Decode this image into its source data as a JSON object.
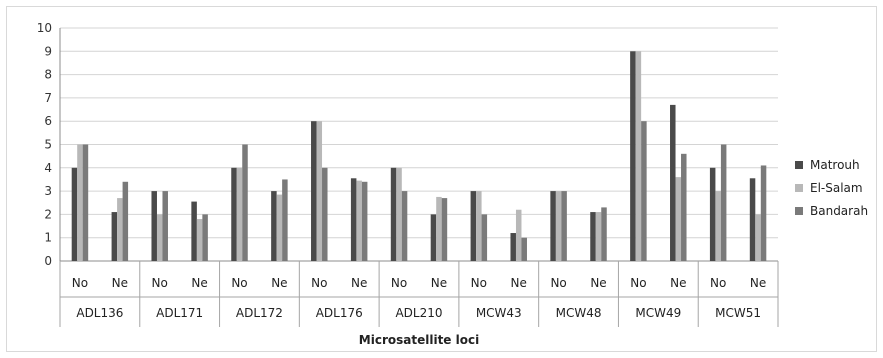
{
  "chart_data": {
    "type": "bar",
    "title": "",
    "xlabel": "Microsatellite loci",
    "ylabel": "",
    "ylim": [
      0,
      10
    ],
    "yticks": [
      0,
      1,
      2,
      3,
      4,
      5,
      6,
      7,
      8,
      9,
      10
    ],
    "grid": true,
    "legend_position": "right",
    "groups": [
      "ADL136",
      "ADL171",
      "ADL172",
      "ADL176",
      "ADL210",
      "MCW43",
      "MCW48",
      "MCW49",
      "MCW51"
    ],
    "subcategories": [
      "No",
      "Ne"
    ],
    "series": [
      {
        "name": "Matrouh",
        "color": "#4a4a4a",
        "values": [
          4,
          2.1,
          3,
          2.55,
          4,
          3,
          6,
          3.55,
          4,
          2,
          3,
          1.2,
          3,
          2.1,
          9,
          6.7,
          4,
          3.55
        ]
      },
      {
        "name": "El-Salam",
        "color": "#b8b8b8",
        "values": [
          5,
          2.7,
          2,
          1.8,
          4,
          2.85,
          6,
          3.45,
          4,
          2.75,
          3,
          2.2,
          3,
          2.1,
          9,
          3.6,
          3,
          2
        ]
      },
      {
        "name": "Bandarah",
        "color": "#7a7a7a",
        "values": [
          5,
          3.4,
          3,
          2,
          5,
          3.5,
          4,
          3.4,
          3,
          2.7,
          2,
          1,
          3,
          2.3,
          6,
          4.6,
          5,
          4.1
        ]
      }
    ]
  }
}
